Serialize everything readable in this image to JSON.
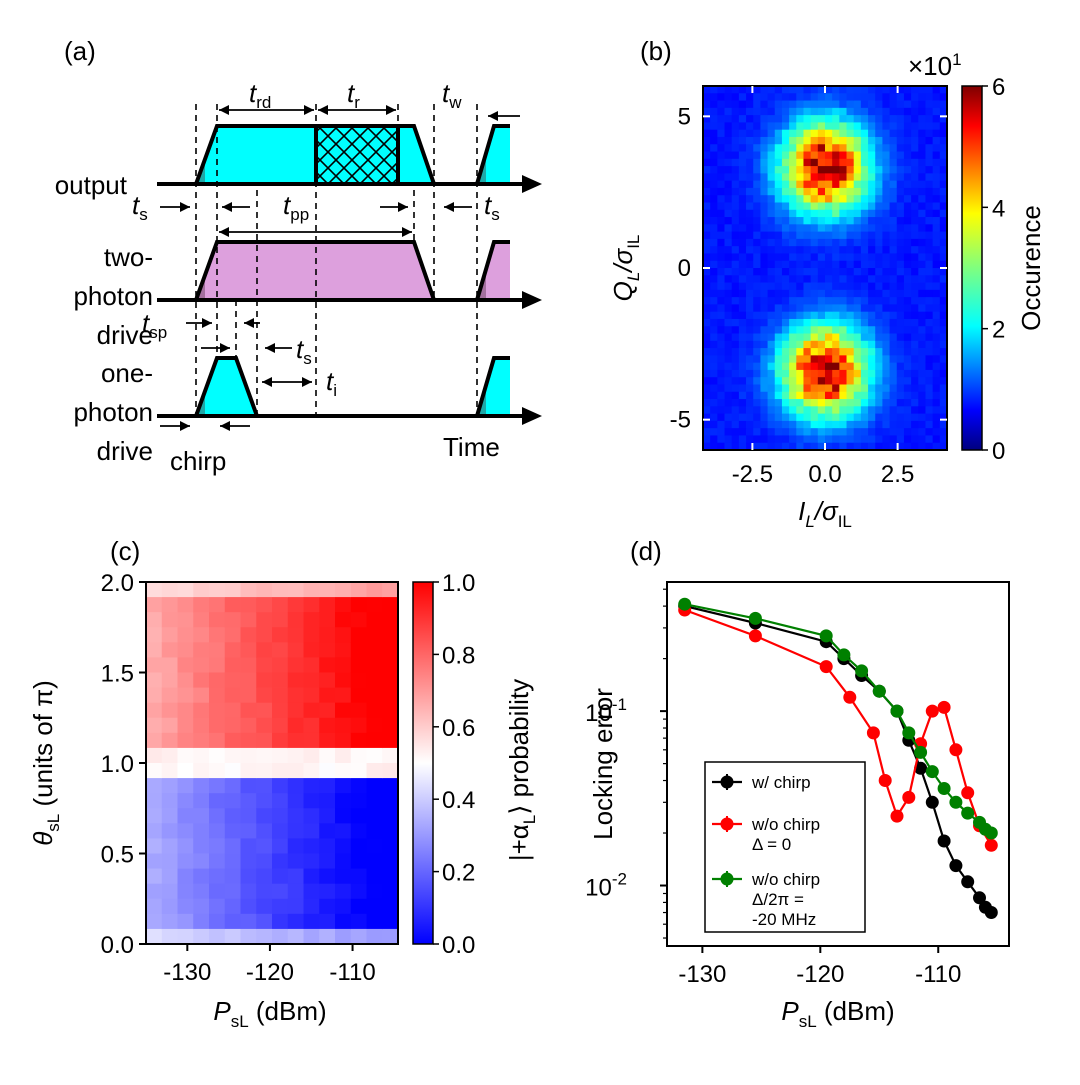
{
  "panel_a": {
    "label": "(a)",
    "rows": {
      "output": "output",
      "two_photon": [
        "two-",
        "photon",
        "drive"
      ],
      "one_photon": [
        "one-",
        "photon",
        "drive"
      ]
    },
    "timing": {
      "t": "t",
      "rd": "rd",
      "r": "r",
      "w": "w",
      "s": "s",
      "pp": "pp",
      "sp": "sp",
      "i": "i"
    },
    "chirp": "chirp",
    "time": "Time",
    "colors": {
      "cyan": "#00ffff",
      "cyan_dark": "#1fa9a9",
      "violet": "#dda0dd",
      "violet_dark": "#a4709f"
    }
  },
  "panel_b": {
    "label": "(b)",
    "scale_label": "×10",
    "scale_exp": "1",
    "colorbar_title": "Occurence",
    "xlabel": {
      "main": "I",
      "sub1": "L",
      "sep": "/σ",
      "sub2": "IL"
    },
    "ylabel": {
      "main": "Q",
      "sub1": "L",
      "sep": "/σ",
      "sub2": "IL"
    }
  },
  "panel_c": {
    "label": "(c)",
    "xlabel": {
      "main": "P",
      "sub": "sL",
      "unit": " (dBm)"
    },
    "ylabel": {
      "main": "θ",
      "sub": "sL",
      "unit": " (units of π)"
    },
    "colorbar_title": "|+α",
    "colorbar_sub": "L",
    "colorbar_tail": "⟩ probability"
  },
  "panel_d": {
    "label": "(d)",
    "xlabel": {
      "main": "P",
      "sub": "sL",
      "unit": " (dBm)"
    },
    "ylabel": "Locking error",
    "legend": [
      {
        "lines": [
          "w/ chirp"
        ],
        "color": "#000000"
      },
      {
        "lines": [
          "w/o chirp",
          "Δ = 0"
        ],
        "color": "#ff0000"
      },
      {
        "lines": [
          "w/o chirp",
          "Δ/2π =",
          "-20 MHz"
        ],
        "color": "#008000"
      }
    ]
  },
  "chart_data": [
    {
      "type": "heatmap",
      "title": "(b)",
      "xlabel": "I_L/σ_IL",
      "ylabel": "Q_L/σ_IL",
      "xlim": [
        -4.2,
        4.2
      ],
      "ylim": [
        -6.0,
        6.0
      ],
      "xticks": [
        "-2.5",
        "0.0",
        "2.5"
      ],
      "xtick_values": [
        -2.5,
        0.0,
        2.5
      ],
      "yticks": [
        "5",
        "0",
        "-5"
      ],
      "ytick_values": [
        5,
        0,
        -5
      ],
      "colorbar": {
        "min": 0,
        "max": 6,
        "ticks": [
          "0",
          "2",
          "4",
          "6"
        ],
        "tick_values": [
          0,
          2,
          4,
          6
        ],
        "scale": "×10^1"
      },
      "blobs": [
        {
          "center": [
            0.0,
            3.3
          ],
          "sigma": 1.0,
          "peak": 6.0
        },
        {
          "center": [
            0.0,
            -3.4
          ],
          "sigma": 1.0,
          "peak": 6.0
        }
      ]
    },
    {
      "type": "heatmap",
      "title": "(c)",
      "xlabel": "P_sL (dBm)",
      "ylabel": "θ_sL (units of π)",
      "xlim": [
        -135,
        -104.5
      ],
      "ylim": [
        0.0,
        2.0
      ],
      "xticks": [
        "-130",
        "-120",
        "-110"
      ],
      "xtick_values": [
        -130,
        -120,
        -110
      ],
      "yticks": [
        "0.0",
        "0.5",
        "1.0",
        "1.5",
        "2.0"
      ],
      "ytick_values": [
        0.0,
        0.5,
        1.0,
        1.5,
        2.0
      ],
      "colorbar": {
        "min": 0.0,
        "max": 1.0,
        "ticks": [
          "0.0",
          "0.2",
          "0.4",
          "0.6",
          "0.8",
          "1.0"
        ],
        "tick_values": [
          0.0,
          0.2,
          0.4,
          0.6,
          0.8,
          1.0
        ]
      },
      "grid_cols": 16,
      "grid_rows": 24
    },
    {
      "type": "line",
      "title": "(d)",
      "xlabel": "P_sL (dBm)",
      "ylabel": "Locking error",
      "yscale": "log",
      "xlim": [
        -133,
        -104
      ],
      "ylim": [
        0.0045,
        0.55
      ],
      "xticks": [
        "-130",
        "-120",
        "-110"
      ],
      "xtick_values": [
        -130,
        -120,
        -110
      ],
      "yticks": [
        "10",
        "10"
      ],
      "ytick_exps": [
        "-2",
        "-1"
      ],
      "ytick_values": [
        0.01,
        0.1
      ],
      "series": [
        {
          "name": "w/ chirp",
          "color": "#000000",
          "x": [
            -131.5,
            -125.5,
            -119.5,
            -118,
            -116.5,
            -115,
            -113.5,
            -112.5,
            -111.5,
            -110.5,
            -109.5,
            -108.5,
            -107.5,
            -106.5,
            -106,
            -105.5
          ],
          "y": [
            0.4,
            0.32,
            0.25,
            0.2,
            0.16,
            0.13,
            0.1,
            0.068,
            0.047,
            0.03,
            0.018,
            0.013,
            0.0105,
            0.0085,
            0.0075,
            0.007
          ]
        },
        {
          "name": "w/o chirp Δ = 0",
          "color": "#ff0000",
          "x": [
            -131.5,
            -125.5,
            -119.5,
            -117.5,
            -115.5,
            -114.5,
            -113.5,
            -112.5,
            -111.5,
            -110.5,
            -109.5,
            -108.5,
            -107.5,
            -106.5,
            -105.5
          ],
          "y": [
            0.38,
            0.27,
            0.18,
            0.12,
            0.075,
            0.04,
            0.025,
            0.032,
            0.065,
            0.1,
            0.105,
            0.06,
            0.034,
            0.022,
            0.017
          ]
        },
        {
          "name": "w/o chirp Δ/2π = -20 MHz",
          "color": "#008000",
          "x": [
            -131.5,
            -125.5,
            -119.5,
            -118,
            -116.5,
            -115,
            -113.5,
            -112.5,
            -111.5,
            -110.5,
            -109.5,
            -108.5,
            -107.5,
            -106.5,
            -106,
            -105.5
          ],
          "y": [
            0.41,
            0.34,
            0.27,
            0.21,
            0.17,
            0.13,
            0.1,
            0.075,
            0.058,
            0.045,
            0.036,
            0.03,
            0.026,
            0.023,
            0.021,
            0.02
          ]
        }
      ]
    }
  ]
}
